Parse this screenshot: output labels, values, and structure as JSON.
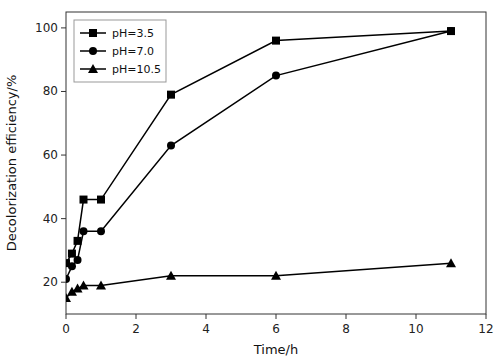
{
  "chart_data": {
    "type": "line",
    "xlabel": "Time/h",
    "ylabel": "Decolorization efficiency/%",
    "x": [
      0,
      0.17,
      0.33,
      0.5,
      1.0,
      3.0,
      6.0,
      11.0
    ],
    "series": [
      {
        "name": "pH=3.5",
        "color": "black",
        "marker": "square",
        "values": [
          26,
          29,
          33,
          46,
          46,
          79,
          96,
          99
        ]
      },
      {
        "name": "pH=7.0",
        "color": "black",
        "marker": "circle",
        "values": [
          21,
          25,
          27,
          36,
          36,
          63,
          85,
          99
        ]
      },
      {
        "name": "pH=10.5",
        "color": "black",
        "marker": "triangle",
        "values": [
          15,
          17,
          18,
          19,
          19,
          22,
          22,
          26
        ]
      }
    ],
    "xlim": [
      0,
      12
    ],
    "ylim": [
      10,
      105
    ],
    "xticks": [
      0,
      2,
      4,
      6,
      8,
      10,
      12
    ],
    "yticks": [
      20,
      40,
      60,
      80,
      100
    ],
    "legend": "upper-left"
  }
}
